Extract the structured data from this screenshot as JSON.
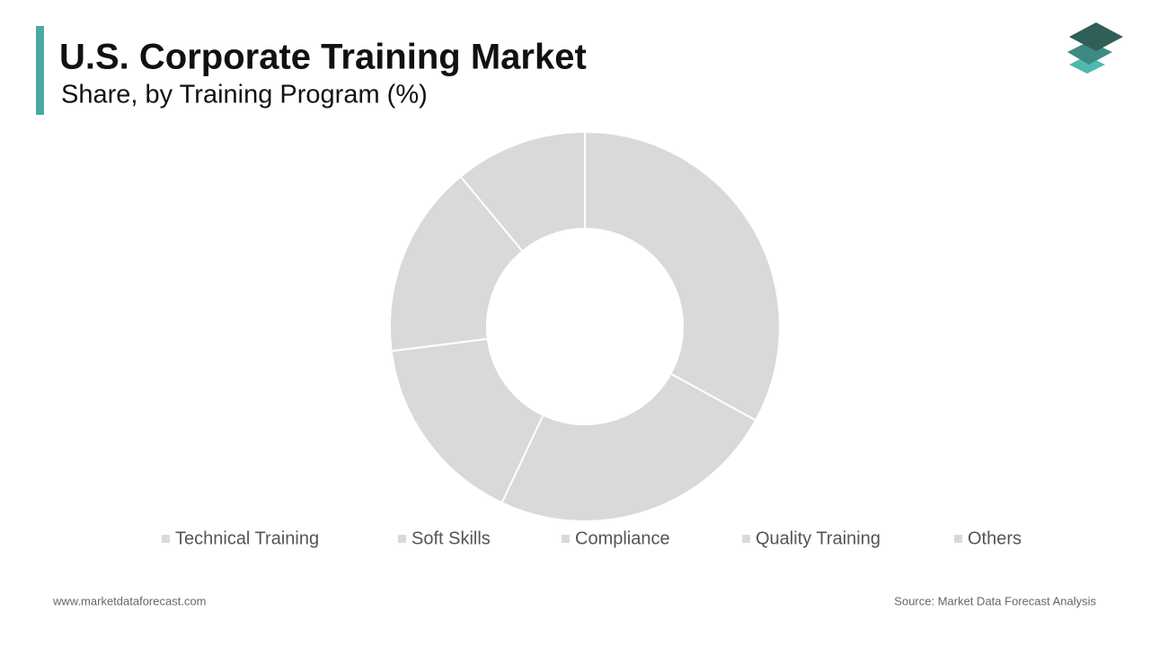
{
  "chart_data": {
    "type": "donut",
    "title": "U.S. Corporate Training Market",
    "subtitle": "Share, by Training Program (%)",
    "categories": [
      "Technical Training",
      "Soft Skills",
      "Compliance",
      "Quality Training",
      "Others"
    ],
    "values": [
      33,
      24,
      16,
      16,
      11
    ],
    "color": "#d9d9d9",
    "website": "www.marketdataforecast.com",
    "source": "Source: Market Data Forecast Analysis"
  }
}
